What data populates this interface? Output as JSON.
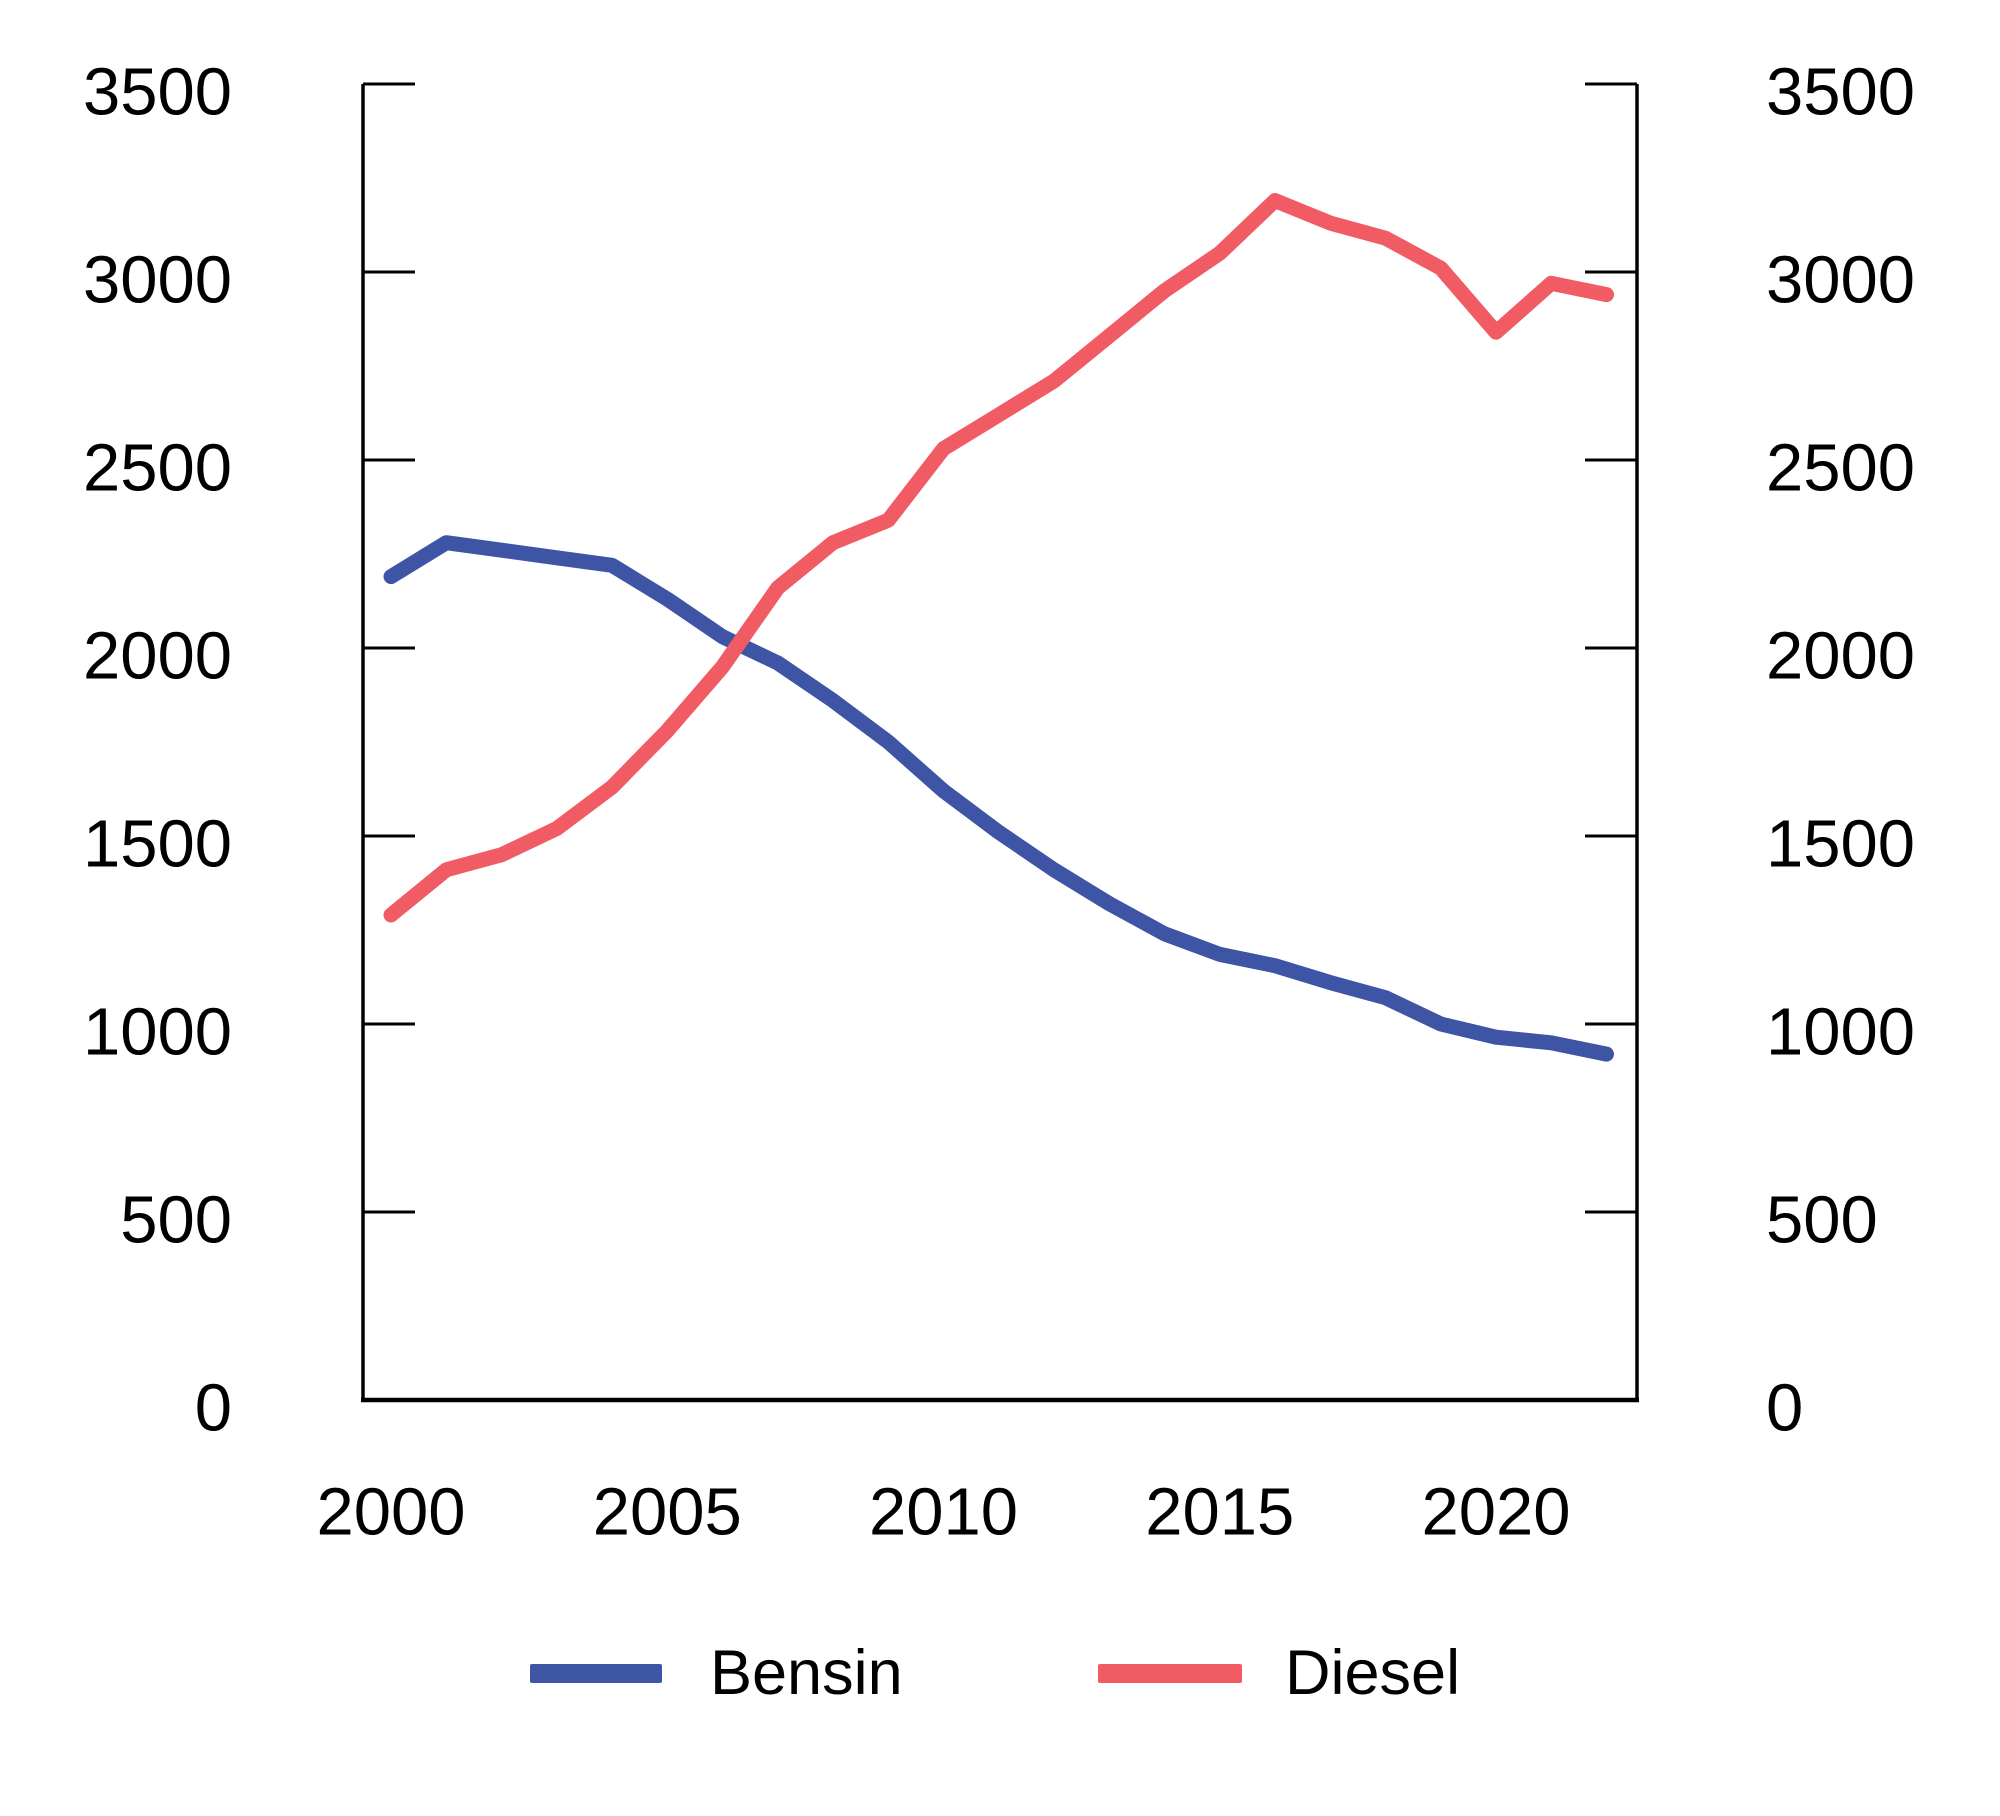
{
  "chart_data": {
    "type": "line",
    "title": "",
    "xlabel": "",
    "ylabel": "",
    "x": [
      2000,
      2001,
      2002,
      2003,
      2004,
      2005,
      2006,
      2007,
      2008,
      2009,
      2010,
      2011,
      2012,
      2013,
      2014,
      2015,
      2016,
      2017,
      2018,
      2019,
      2020,
      2021,
      2022
    ],
    "series": [
      {
        "name": "Bensin",
        "color": "#3E54A4",
        "values": [
          2190,
          2280,
          2260,
          2240,
          2220,
          2130,
          2030,
          1960,
          1860,
          1750,
          1620,
          1510,
          1410,
          1320,
          1240,
          1185,
          1155,
          1110,
          1070,
          1000,
          965,
          950,
          920
        ]
      },
      {
        "name": "Diesel",
        "color": "#F15C64",
        "values": [
          1290,
          1410,
          1450,
          1520,
          1630,
          1780,
          1950,
          2160,
          2280,
          2340,
          2530,
          2620,
          2710,
          2830,
          2950,
          3050,
          3190,
          3130,
          3090,
          3010,
          2840,
          2970,
          2940
        ]
      }
    ],
    "x_ticks": [
      2000,
      2005,
      2010,
      2015,
      2020
    ],
    "y_ticks": [
      0,
      500,
      1000,
      1500,
      2000,
      2500,
      3000,
      3500
    ],
    "ylim": [
      0,
      3500
    ],
    "dual_y_axis": true,
    "grid": false,
    "legend_position": "bottom",
    "axis_color": "#000000"
  }
}
